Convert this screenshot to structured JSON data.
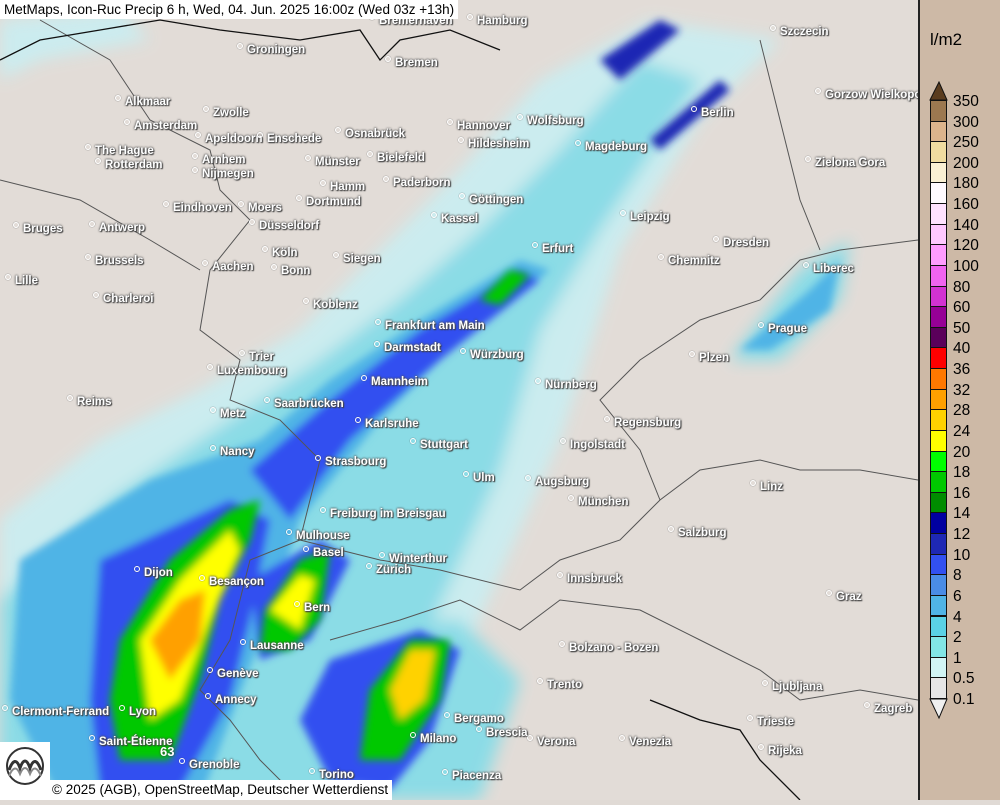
{
  "header": {
    "title": "MetMaps, Icon-Ruc Precip 6 h, Wed, 04. Jun. 2025 16:00z (Wed 03z +13h)"
  },
  "footer": {
    "credit": "© 2025 (AGB), OpenStreetMap, Deutscher Wetterdienst",
    "logo": "METMAPS"
  },
  "map": {
    "max_value_label": "63",
    "cities": [
      "Bremerhaven",
      "Hamburg",
      "Szczecin",
      "Groningen",
      "Bremen",
      "Gorzow Wielkopolski",
      "Alkmaar",
      "Zwolle",
      "Berlin",
      "Amsterdam",
      "Hannover",
      "Wolfsburg",
      "Apeldoorn",
      "Enschede",
      "Osnabrück",
      "The Hague",
      "Hildesheim",
      "Magdeburg",
      "Arnhem",
      "Münster",
      "Bielefeld",
      "Zielona Gora",
      "Rotterdam",
      "Nijmegen",
      "Hamm",
      "Paderborn",
      "Dortmund",
      "Göttingen",
      "Eindhoven",
      "Moers",
      "Kassel",
      "Leipzig",
      "Bruges",
      "Antwerp",
      "Düsseldorf",
      "Dresden",
      "Erfurt",
      "Köln",
      "Brussels",
      "Aachen",
      "Siegen",
      "Bonn",
      "Chemnitz",
      "Liberec",
      "Lille",
      "Charleroi",
      "Koblenz",
      "Frankfurt am Main",
      "Prague",
      "Darmstadt",
      "Würzburg",
      "Plzen",
      "Trier",
      "Luxembourg",
      "Mannheim",
      "Nürnberg",
      "Reims",
      "Saarbrücken",
      "Metz",
      "Karlsruhe",
      "Regensburg",
      "Stuttgart",
      "Ingolstadt",
      "Nancy",
      "Strasbourg",
      "Ulm",
      "Augsburg",
      "Linz",
      "München",
      "Freiburg im Breisgau",
      "Salzburg",
      "Mulhouse",
      "Basel",
      "Winterthur",
      "Zürich",
      "Dijon",
      "Besançon",
      "Innsbruck",
      "Bern",
      "Graz",
      "Lausanne",
      "Bolzano - Bozen",
      "Genève",
      "Trento",
      "Ljubljana",
      "Annecy",
      "Clermont-Ferrand",
      "Lyon",
      "Zagreb",
      "Bergamo",
      "Trieste",
      "Brescia",
      "Milano",
      "Verona",
      "Venezia",
      "Saint-Étienne",
      "Rijeka",
      "Grenoble",
      "Torino",
      "Piacenza"
    ]
  },
  "legend": {
    "unit": "l/m2",
    "labels": [
      "350",
      "300",
      "250",
      "200",
      "180",
      "160",
      "140",
      "120",
      "100",
      "80",
      "60",
      "50",
      "40",
      "36",
      "32",
      "28",
      "24",
      "20",
      "18",
      "16",
      "14",
      "12",
      "10",
      "8",
      "6",
      "4",
      "2",
      "1",
      "0.5",
      "0.1"
    ],
    "colors": [
      "#9c7850",
      "#dcb48c",
      "#f0dca0",
      "#faf0d4",
      "#fffaff",
      "#ffe2ff",
      "#ffc8ff",
      "#ff9cff",
      "#f064f0",
      "#d232d2",
      "#960096",
      "#5a005a",
      "#ff0000",
      "#ff7800",
      "#ffa000",
      "#ffd200",
      "#ffff00",
      "#00ff00",
      "#00c800",
      "#008c00",
      "#0000a0",
      "#1e28b4",
      "#3250f0",
      "#4a8ce6",
      "#50b4e6",
      "#5ad2e6",
      "#82e6e6",
      "#d2f5f5",
      "#e6e6e6"
    ],
    "top_arrow_color": "#5a3c1e",
    "bottom_arrow_color": "#f0f0f0"
  }
}
